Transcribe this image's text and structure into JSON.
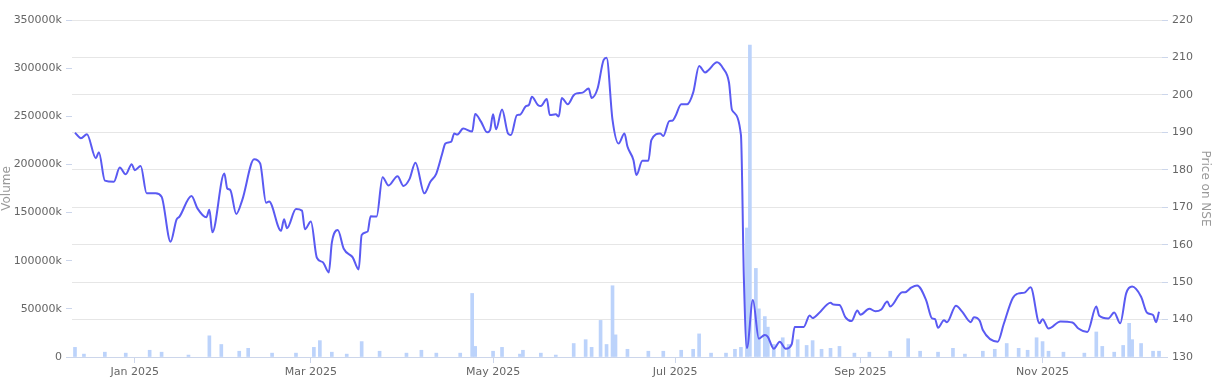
{
  "chart_data": {
    "type": "bar",
    "ylabel": "Volume",
    "y2label": "Price on NSE",
    "xlim": [
      "2024-12-11",
      "2025-12-11"
    ],
    "xticks": [
      {
        "value": "2025-01-01",
        "label": "Jan 2025"
      },
      {
        "value": "2025-03-01",
        "label": "Mar 2025"
      },
      {
        "value": "2025-05-01",
        "label": "May 2025"
      },
      {
        "value": "2025-07-01",
        "label": "Jul 2025"
      },
      {
        "value": "2025-09-01",
        "label": "Sep 2025"
      },
      {
        "value": "2025-11-01",
        "label": "Nov 2025"
      }
    ],
    "ylim": [
      0,
      350000
    ],
    "yticks": [
      0,
      {
        "value": 50000,
        "label": "50000k"
      },
      {
        "value": 100000,
        "label": "100000k"
      },
      {
        "value": 150000,
        "label": "150000k"
      },
      {
        "value": 200000,
        "label": "200000k"
      },
      {
        "value": 250000,
        "label": "250000k"
      },
      {
        "value": 300000,
        "label": "300000k"
      },
      {
        "value": 350000,
        "label": "350000k"
      }
    ],
    "y2lim": [
      130,
      220
    ],
    "y2ticks": [
      130,
      140,
      150,
      160,
      170,
      180,
      190,
      200,
      210,
      220
    ],
    "grid": "y",
    "series": [
      {
        "color": "#bcd3fb",
        "x": [
          "2024-12-12",
          "2024-12-15",
          "2024-12-22",
          "2024-12-29",
          "2025-01-06",
          "2025-01-10",
          "2025-01-19",
          "2025-01-26",
          "2025-01-30",
          "2025-02-05",
          "2025-02-08",
          "2025-02-16",
          "2025-02-24",
          "2025-03-02",
          "2025-03-04",
          "2025-03-08",
          "2025-03-13",
          "2025-03-18",
          "2025-03-24",
          "2025-04-02",
          "2025-04-07",
          "2025-04-12",
          "2025-04-20",
          "2025-04-24",
          "2025-04-25",
          "2025-05-01",
          "2025-05-04",
          "2025-05-10",
          "2025-05-11",
          "2025-05-17",
          "2025-05-22",
          "2025-05-28",
          "2025-06-01",
          "2025-06-03",
          "2025-06-06",
          "2025-06-08",
          "2025-06-10",
          "2025-06-11",
          "2025-06-15",
          "2025-06-22",
          "2025-06-27",
          "2025-07-03",
          "2025-07-07",
          "2025-07-09",
          "2025-07-13",
          "2025-07-18",
          "2025-07-21",
          "2025-07-23",
          "2025-07-25",
          "2025-07-26",
          "2025-07-28",
          "2025-07-29",
          "2025-07-31",
          "2025-08-01",
          "2025-08-03",
          "2025-08-06",
          "2025-08-08",
          "2025-08-11",
          "2025-08-14",
          "2025-08-16",
          "2025-08-19",
          "2025-08-22",
          "2025-08-25",
          "2025-08-30",
          "2025-09-04",
          "2025-09-11",
          "2025-09-17",
          "2025-09-21",
          "2025-09-27",
          "2025-10-02",
          "2025-10-06",
          "2025-10-12",
          "2025-10-16",
          "2025-10-20",
          "2025-10-24",
          "2025-10-27",
          "2025-10-30",
          "2025-11-01",
          "2025-11-03",
          "2025-11-08",
          "2025-11-15",
          "2025-11-19",
          "2025-11-21",
          "2025-11-25",
          "2025-11-28",
          "2025-11-30",
          "2025-12-01",
          "2025-12-04",
          "2025-12-08",
          "2025-12-10"
        ],
        "values": [
          10000,
          3000,
          5000,
          4000,
          7000,
          5000,
          2000,
          22000,
          13000,
          6000,
          9000,
          4000,
          4000,
          10000,
          17000,
          5000,
          3000,
          16000,
          6000,
          4000,
          7000,
          4000,
          4000,
          66000,
          11000,
          6000,
          10000,
          3000,
          7000,
          4000,
          2000,
          14000,
          18000,
          10000,
          38000,
          13000,
          74000,
          23000,
          8000,
          6000,
          6000,
          7000,
          8000,
          24000,
          4000,
          4000,
          8000,
          10000,
          134000,
          324000,
          92000,
          50000,
          42000,
          31000,
          13000,
          20000,
          13000,
          18000,
          12000,
          17000,
          8000,
          9000,
          11000,
          4000,
          5000,
          6000,
          19000,
          6000,
          5000,
          9000,
          3000,
          6000,
          8000,
          14000,
          9000,
          7000,
          20000,
          16000,
          6000,
          5000,
          4000,
          26000,
          11000,
          5000,
          12000,
          35000,
          18000,
          14000,
          6000,
          6000
        ]
      },
      {
        "type": "line",
        "axis": "y2",
        "color": "#5a5af2",
        "x": [
          "2024-12-12",
          "2024-12-14",
          "2024-12-16",
          "2024-12-19",
          "2024-12-20",
          "2024-12-22",
          "2024-12-25",
          "2024-12-27",
          "2024-12-29",
          "2024-12-31",
          "2025-01-01",
          "2025-01-03",
          "2025-01-05",
          "2025-01-08",
          "2025-01-10",
          "2025-01-13",
          "2025-01-15",
          "2025-01-16",
          "2025-01-20",
          "2025-01-22",
          "2025-01-25",
          "2025-01-26",
          "2025-01-27",
          "2025-01-31",
          "2025-02-01",
          "2025-02-02",
          "2025-02-04",
          "2025-02-06",
          "2025-02-10",
          "2025-02-12",
          "2025-02-14",
          "2025-02-15",
          "2025-02-19",
          "2025-02-20",
          "2025-02-21",
          "2025-02-24",
          "2025-02-26",
          "2025-02-27",
          "2025-03-01",
          "2025-03-03",
          "2025-03-05",
          "2025-03-07",
          "2025-03-08",
          "2025-03-10",
          "2025-03-12",
          "2025-03-15",
          "2025-03-17",
          "2025-03-18",
          "2025-03-20",
          "2025-03-21",
          "2025-03-23",
          "2025-03-25",
          "2025-03-27",
          "2025-03-30",
          "2025-04-01",
          "2025-04-03",
          "2025-04-05",
          "2025-04-08",
          "2025-04-10",
          "2025-04-12",
          "2025-04-14",
          "2025-04-15",
          "2025-04-17",
          "2025-04-18",
          "2025-04-19",
          "2025-04-21",
          "2025-04-24",
          "2025-04-25",
          "2025-04-27",
          "2025-04-29",
          "2025-04-30",
          "2025-05-01",
          "2025-05-02",
          "2025-05-04",
          "2025-05-06",
          "2025-05-07",
          "2025-05-09",
          "2025-05-10",
          "2025-05-12",
          "2025-05-13",
          "2025-05-14",
          "2025-05-16",
          "2025-05-17",
          "2025-05-19",
          "2025-05-20",
          "2025-05-22",
          "2025-05-23",
          "2025-05-24",
          "2025-05-26",
          "2025-05-28",
          "2025-05-29",
          "2025-05-31",
          "2025-06-02",
          "2025-06-03",
          "2025-06-05",
          "2025-06-07",
          "2025-06-08",
          "2025-06-10",
          "2025-06-12",
          "2025-06-14",
          "2025-06-15",
          "2025-06-17",
          "2025-06-18",
          "2025-06-20",
          "2025-06-22",
          "2025-06-23",
          "2025-06-26",
          "2025-06-27",
          "2025-06-29",
          "2025-06-30",
          "2025-07-01",
          "2025-07-03",
          "2025-07-05",
          "2025-07-07",
          "2025-07-09",
          "2025-07-11",
          "2025-07-12",
          "2025-07-15",
          "2025-07-17",
          "2025-07-19",
          "2025-07-20",
          "2025-07-23",
          "2025-07-24",
          "2025-07-25",
          "2025-07-27",
          "2025-07-29",
          "2025-07-31",
          "2025-08-01",
          "2025-08-03",
          "2025-08-05",
          "2025-08-07",
          "2025-08-09",
          "2025-08-10",
          "2025-08-13",
          "2025-08-15",
          "2025-08-16",
          "2025-08-18",
          "2025-08-22",
          "2025-08-23",
          "2025-08-25",
          "2025-08-27",
          "2025-08-29",
          "2025-08-31",
          "2025-09-01",
          "2025-09-04",
          "2025-09-06",
          "2025-09-08",
          "2025-09-10",
          "2025-09-11",
          "2025-09-15",
          "2025-09-16",
          "2025-09-18",
          "2025-09-20",
          "2025-09-23",
          "2025-09-25",
          "2025-09-26",
          "2025-09-27",
          "2025-09-29",
          "2025-09-30",
          "2025-10-03",
          "2025-10-05",
          "2025-10-08",
          "2025-10-09",
          "2025-10-11",
          "2025-10-12",
          "2025-10-17",
          "2025-10-19",
          "2025-10-22",
          "2025-10-24",
          "2025-10-26",
          "2025-10-28",
          "2025-10-31",
          "2025-11-01",
          "2025-11-03",
          "2025-11-07",
          "2025-11-11",
          "2025-11-13",
          "2025-11-16",
          "2025-11-19",
          "2025-11-20",
          "2025-11-23",
          "2025-11-25",
          "2025-11-27",
          "2025-11-29",
          "2025-12-01",
          "2025-12-04",
          "2025-12-06",
          "2025-12-08",
          "2025-12-09",
          "2025-12-10"
        ],
        "values": [
          189.9,
          188.4,
          189.5,
          183.1,
          184.7,
          177.1,
          176.8,
          180.6,
          178.8,
          181.5,
          179.9,
          181.0,
          173.7,
          173.7,
          172.8,
          160.8,
          166.7,
          167.5,
          173.0,
          169.7,
          167.3,
          169.3,
          163.3,
          179.0,
          175.0,
          174.6,
          168.2,
          171.9,
          182.8,
          181.7,
          171.2,
          171.5,
          163.7,
          166.8,
          164.4,
          169.5,
          169.1,
          164.1,
          166.2,
          156.5,
          155.3,
          152.6,
          160.5,
          163.9,
          158.9,
          156.6,
          153.4,
          162.6,
          163.5,
          167.6,
          167.5,
          178.0,
          175.8,
          178.3,
          175.7,
          177.5,
          181.9,
          173.7,
          176.8,
          179.0,
          184.4,
          187.0,
          187.5,
          189.7,
          189.4,
          191.0,
          190.2,
          194.9,
          192.8,
          190.0,
          190.6,
          194.8,
          190.8,
          196.1,
          189.7,
          189.3,
          194.6,
          194.7,
          197.0,
          197.3,
          199.5,
          197.3,
          197.0,
          198.9,
          194.6,
          194.8,
          194.2,
          199.2,
          197.5,
          199.9,
          200.4,
          200.6,
          201.7,
          199.2,
          201.7,
          209.3,
          209.9,
          193.3,
          187.0,
          189.7,
          186.2,
          182.6,
          178.6,
          182.4,
          182.4,
          187.9,
          189.7,
          189.0,
          193.0,
          193.1,
          194.2,
          197.5,
          197.5,
          200.6,
          207.7,
          206.0,
          206.5,
          208.7,
          207.1,
          203.3,
          196.0,
          189.3,
          150.6,
          132.4,
          145.2,
          134.9,
          135.9,
          135.4,
          132.2,
          134.1,
          132.2,
          133.4,
          138.0,
          138.0,
          141.1,
          140.4,
          141.6,
          144.5,
          144.0,
          143.9,
          140.6,
          139.6,
          142.4,
          141.3,
          142.9,
          142.2,
          142.7,
          144.8,
          143.5,
          147.3,
          147.3,
          148.5,
          149.1,
          145.2,
          140.3,
          140.1,
          137.8,
          139.8,
          139.3,
          143.7,
          142.2,
          139.3,
          140.6,
          139.6,
          137.2,
          134.1,
          138.8,
          145.7,
          147.0,
          147.2,
          148.6,
          139.0,
          140.1,
          137.6,
          139.5,
          139.2,
          137.6,
          136.7,
          143.5,
          141.0,
          140.3,
          141.9,
          139.0,
          147.0,
          148.8,
          146.1,
          141.8,
          141.2,
          139.3,
          142.1
        ]
      }
    ]
  }
}
